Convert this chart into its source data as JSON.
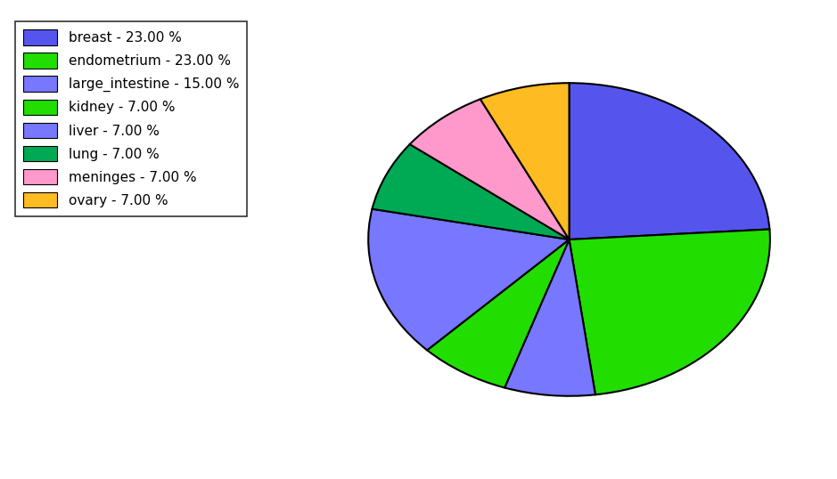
{
  "legend_labels": [
    "breast - 23.00 %",
    "endometrium - 23.00 %",
    "large_intestine - 15.00 %",
    "kidney - 7.00 %",
    "liver - 7.00 %",
    "lung - 7.00 %",
    "meninges - 7.00 %",
    "ovary - 7.00 %"
  ],
  "legend_colors": [
    "#5555ee",
    "#22dd00",
    "#7777ff",
    "#22dd00",
    "#7777ff",
    "#00aa55",
    "#ff99cc",
    "#ffbb22"
  ],
  "pie_order": [
    "breast",
    "endometrium",
    "liver",
    "kidney",
    "large_intestine",
    "lung",
    "meninges",
    "ovary"
  ],
  "pie_values": [
    23,
    23,
    7,
    7,
    15,
    7,
    7,
    7
  ],
  "pie_colors": [
    "#5555ee",
    "#22dd00",
    "#7777ff",
    "#22dd00",
    "#7777ff",
    "#00aa55",
    "#ff99cc",
    "#ffbb22"
  ],
  "startangle": 90,
  "counterclock": false,
  "figsize": [
    9.39,
    5.38
  ],
  "dpi": 100
}
